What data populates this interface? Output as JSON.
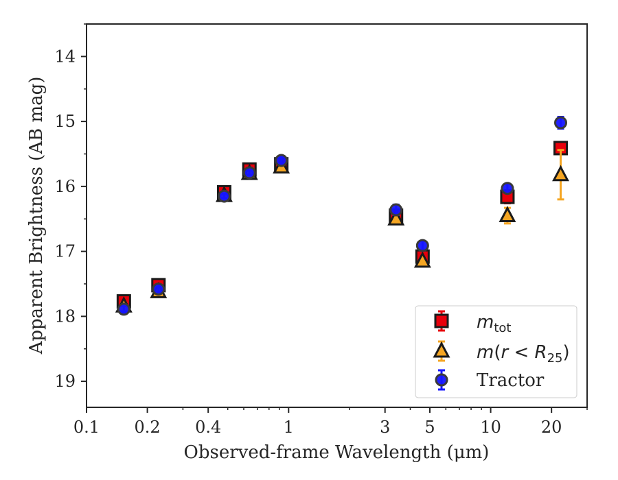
{
  "chart_data": {
    "type": "scatter",
    "xlabel": "Observed-frame Wavelength (μm)",
    "ylabel": "Apparent Brightness (AB mag)",
    "xscale": "log",
    "xlim": [
      0.1,
      30
    ],
    "ylim": [
      19.4,
      13.5
    ],
    "y_inverted": true,
    "x_ticks": [
      {
        "value": 0.1,
        "label": "0.1"
      },
      {
        "value": 0.2,
        "label": "0.2"
      },
      {
        "value": 0.4,
        "label": "0.4"
      },
      {
        "value": 1,
        "label": "1"
      },
      {
        "value": 3,
        "label": "3"
      },
      {
        "value": 5,
        "label": "5"
      },
      {
        "value": 10,
        "label": "10"
      },
      {
        "value": 20,
        "label": "20"
      }
    ],
    "y_ticks": [
      14,
      15,
      16,
      17,
      18,
      19
    ],
    "grid": false,
    "legend_position": "bottom-right",
    "series": [
      {
        "name": "m_tot",
        "marker": "square",
        "color": "#e8000b",
        "edge_color": "#1a1a1a",
        "errorbar_color": "#e8000b",
        "points": [
          {
            "x": 0.153,
            "y": 17.77,
            "err": 0.06
          },
          {
            "x": 0.227,
            "y": 17.52,
            "err": 0.05
          },
          {
            "x": 0.48,
            "y": 16.09,
            "err": 0.03
          },
          {
            "x": 0.64,
            "y": 15.74,
            "err": 0.03
          },
          {
            "x": 0.92,
            "y": 15.66,
            "err": 0.03
          },
          {
            "x": 3.4,
            "y": 16.45,
            "err": 0.04
          },
          {
            "x": 4.6,
            "y": 17.08,
            "err": 0.04
          },
          {
            "x": 12.1,
            "y": 16.16,
            "err": 0.1
          },
          {
            "x": 22.2,
            "y": 15.41,
            "err": 0.08
          }
        ]
      },
      {
        "name": "m(r < R_25)",
        "marker": "triangle",
        "color": "#f5a623",
        "edge_color": "#1a1a1a",
        "errorbar_color": "#f5a623",
        "points": [
          {
            "x": 0.153,
            "y": 17.84,
            "err": 0.05
          },
          {
            "x": 0.227,
            "y": 17.62,
            "err": 0.05
          },
          {
            "x": 0.48,
            "y": 16.14,
            "err": 0.03
          },
          {
            "x": 0.64,
            "y": 15.8,
            "err": 0.03
          },
          {
            "x": 0.92,
            "y": 15.7,
            "err": 0.03
          },
          {
            "x": 3.4,
            "y": 16.5,
            "err": 0.04
          },
          {
            "x": 4.6,
            "y": 17.15,
            "err": 0.04
          },
          {
            "x": 12.1,
            "y": 16.45,
            "err": 0.12
          },
          {
            "x": 22.2,
            "y": 15.82,
            "err": 0.38
          }
        ]
      },
      {
        "name": "Tractor",
        "marker": "circle",
        "color": "#1515ff",
        "edge_color": "#3a3a3a",
        "errorbar_color": "#1515ff",
        "points": [
          {
            "x": 0.153,
            "y": 17.89,
            "err": 0.05
          },
          {
            "x": 0.227,
            "y": 17.58,
            "err": 0.05
          },
          {
            "x": 0.48,
            "y": 16.15,
            "err": 0.03
          },
          {
            "x": 0.64,
            "y": 15.79,
            "err": 0.03
          },
          {
            "x": 0.92,
            "y": 15.6,
            "err": 0.05
          },
          {
            "x": 3.4,
            "y": 16.36,
            "err": 0.08
          },
          {
            "x": 4.6,
            "y": 16.91,
            "err": 0.07
          },
          {
            "x": 12.1,
            "y": 16.03,
            "err": 0.07
          },
          {
            "x": 22.2,
            "y": 15.02,
            "err": 0.09
          }
        ]
      }
    ]
  }
}
